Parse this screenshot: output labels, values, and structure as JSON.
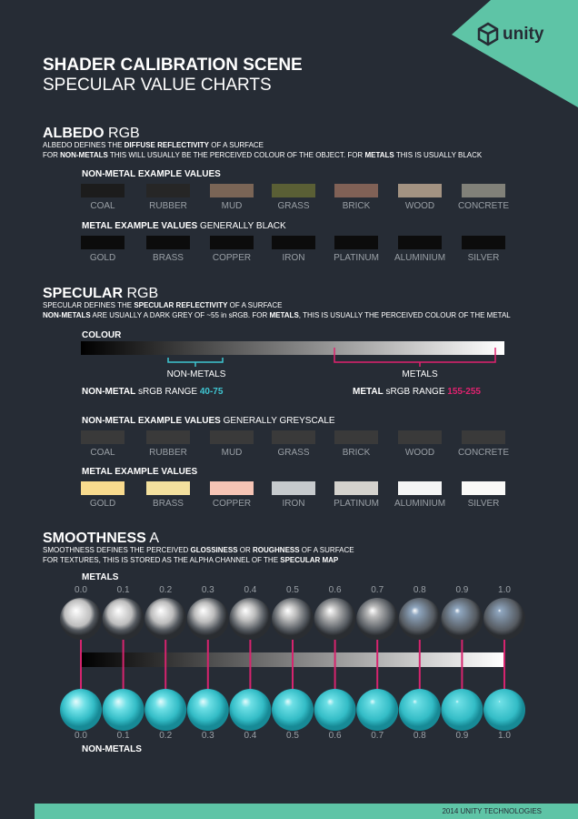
{
  "logo": {
    "text": "unity"
  },
  "header": {
    "title": "SHADER CALIBRATION SCENE",
    "subtitle": "SPECULAR VALUE CHARTS"
  },
  "albedo": {
    "heading": [
      {
        "text": "ALBEDO",
        "bold": true
      },
      {
        "text": " RGB"
      }
    ],
    "description": [
      [
        {
          "text": "ALBEDO DEFINES THE "
        },
        {
          "text": "DIFFUSE REFLECTIVITY",
          "bold": true
        },
        {
          "text": " OF A SURFACE"
        }
      ],
      [
        {
          "text": "FOR "
        },
        {
          "text": "NON-METALS",
          "bold": true
        },
        {
          "text": " THIS WILL USUALLY BE THE PERCEIVED COLOUR OF THE OBJECT. FOR "
        },
        {
          "text": "METALS",
          "bold": true
        },
        {
          "text": " THIS IS USUALLY BLACK"
        }
      ]
    ],
    "groups": [
      {
        "heading": [
          {
            "text": "NON-METAL EXAMPLE VALUES",
            "bold": true
          }
        ],
        "swatches": [
          {
            "name": "COAL",
            "color": "#1c1c1c"
          },
          {
            "name": "RUBBER",
            "color": "#262626"
          },
          {
            "name": "MUD",
            "color": "#7a6556"
          },
          {
            "name": "GRASS",
            "color": "#5a5f35"
          },
          {
            "name": "BRICK",
            "color": "#806156"
          },
          {
            "name": "WOOD",
            "color": "#a39382"
          },
          {
            "name": "CONCRETE",
            "color": "#818179"
          }
        ]
      },
      {
        "heading": [
          {
            "text": "METAL EXAMPLE VALUES",
            "bold": true
          },
          {
            "text": " GENERALLY BLACK"
          }
        ],
        "swatches": [
          {
            "name": "GOLD",
            "color": "#0c0c0c"
          },
          {
            "name": "BRASS",
            "color": "#0c0c0c"
          },
          {
            "name": "COPPER",
            "color": "#0c0c0c"
          },
          {
            "name": "IRON",
            "color": "#0c0c0c"
          },
          {
            "name": "PLATINUM",
            "color": "#0c0c0c"
          },
          {
            "name": "ALUMINIUM",
            "color": "#0c0c0c"
          },
          {
            "name": "SILVER",
            "color": "#0c0c0c"
          }
        ]
      }
    ]
  },
  "specular": {
    "heading": [
      {
        "text": "SPECULAR",
        "bold": true
      },
      {
        "text": " RGB"
      }
    ],
    "description": [
      [
        {
          "text": "SPECULAR DEFINES THE "
        },
        {
          "text": "SPECULAR REFLECTIVITY",
          "bold": true
        },
        {
          "text": " OF A SURFACE"
        }
      ],
      [
        {
          "text": "NON-METALS",
          "bold": true
        },
        {
          "text": " ARE USUALLY A DARK GREY OF ~55 in sRGB. FOR "
        },
        {
          "text": "METALS",
          "bold": true
        },
        {
          "text": ", THIS IS USUALLY THE PERCEIVED COLOUR OF THE METAL"
        }
      ]
    ],
    "colour_label": "COLOUR",
    "non_metals_label": "NON-METALS",
    "metals_label": "METALS",
    "non_metal_range": [
      {
        "text": "NON-METAL",
        "bold": true
      },
      {
        "text": " sRGB RANGE "
      },
      {
        "text": "40-75",
        "bold": true,
        "color": "#3fc6d2"
      }
    ],
    "metal_range": [
      {
        "text": "METAL",
        "bold": true
      },
      {
        "text": " sRGB RANGE "
      },
      {
        "text": "155-255",
        "bold": true,
        "color": "#e0226f"
      }
    ],
    "groups": [
      {
        "heading": [
          {
            "text": "NON-METAL EXAMPLE VALUES",
            "bold": true
          },
          {
            "text": " GENERALLY GREYSCALE"
          }
        ],
        "swatches": [
          {
            "name": "COAL",
            "color": "#3a3a3a"
          },
          {
            "name": "RUBBER",
            "color": "#3a3a3a"
          },
          {
            "name": "MUD",
            "color": "#3a3a3a"
          },
          {
            "name": "GRASS",
            "color": "#3a3a3a"
          },
          {
            "name": "BRICK",
            "color": "#3a3a3a"
          },
          {
            "name": "WOOD",
            "color": "#3a3a3a"
          },
          {
            "name": "CONCRETE",
            "color": "#3a3a3a"
          }
        ]
      },
      {
        "heading": [
          {
            "text": "METAL EXAMPLE VALUES",
            "bold": true
          }
        ],
        "swatches": [
          {
            "name": "GOLD",
            "color": "#f8db8e"
          },
          {
            "name": "BRASS",
            "color": "#f3e09e"
          },
          {
            "name": "COPPER",
            "color": "#f6c4b5"
          },
          {
            "name": "IRON",
            "color": "#c6cacd"
          },
          {
            "name": "PLATINUM",
            "color": "#d4d2cd"
          },
          {
            "name": "ALUMINIUM",
            "color": "#f4f5f5"
          },
          {
            "name": "SILVER",
            "color": "#f9f9f7"
          }
        ]
      }
    ]
  },
  "smoothness": {
    "heading": [
      {
        "text": "SMOOTHNESS",
        "bold": true
      },
      {
        "text": " A"
      }
    ],
    "description": [
      [
        {
          "text": "SMOOTHNESS DEFINES THE PERCEIVED "
        },
        {
          "text": "GLOSSINESS",
          "bold": true
        },
        {
          "text": " OR "
        },
        {
          "text": "ROUGHNESS",
          "bold": true
        },
        {
          "text": " OF A SURFACE"
        }
      ],
      [
        {
          "text": "FOR TEXTURES, THIS IS STORED AS THE ALPHA CHANNEL OF THE "
        },
        {
          "text": "SPECULAR MAP",
          "bold": true
        }
      ]
    ],
    "metals_label": "METALS",
    "non_metals_label": "NON-METALS",
    "values": [
      "0.0",
      "0.1",
      "0.2",
      "0.3",
      "0.4",
      "0.5",
      "0.6",
      "0.7",
      "0.8",
      "0.9",
      "1.0"
    ]
  },
  "footer": "2014 UNITY TECHNOLOGIES"
}
